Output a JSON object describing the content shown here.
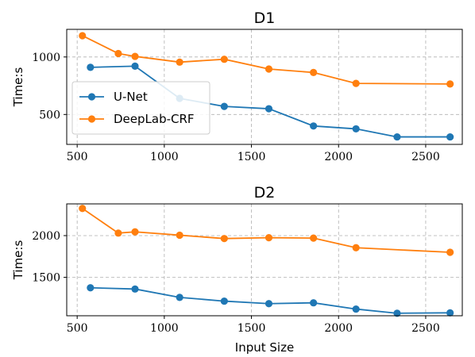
{
  "chart_data": [
    {
      "type": "line",
      "title": "D1",
      "xlabel": "",
      "ylabel": "Time:s",
      "xlim": [
        440,
        2710
      ],
      "ylim": [
        240,
        1240
      ],
      "xticks": [
        500,
        1000,
        1500,
        2000,
        2500
      ],
      "yticks": [
        500,
        1000
      ],
      "grid": true,
      "legend": "center-left",
      "series": [
        {
          "name": "U-Net",
          "color": "#1f77b4",
          "x": [
            576,
            832,
            1088,
            1344,
            1600,
            1856,
            2100,
            2336,
            2640
          ],
          "y": [
            910,
            920,
            640,
            570,
            550,
            400,
            375,
            305,
            305
          ]
        },
        {
          "name": "DeepLab-CRF",
          "color": "#ff7f0e",
          "x": [
            530,
            736,
            832,
            1088,
            1344,
            1600,
            1856,
            2100,
            2640
          ],
          "y": [
            1185,
            1030,
            1005,
            955,
            980,
            895,
            865,
            770,
            765
          ]
        }
      ]
    },
    {
      "type": "line",
      "title": "D2",
      "xlabel": "Input Size",
      "ylabel": "Time:s",
      "xlim": [
        440,
        2710
      ],
      "ylim": [
        1040,
        2380
      ],
      "xticks": [
        500,
        1000,
        1500,
        2000,
        2500
      ],
      "yticks": [
        1500,
        2000
      ],
      "grid": true,
      "series": [
        {
          "name": "U-Net",
          "color": "#1f77b4",
          "x": [
            576,
            832,
            1088,
            1344,
            1600,
            1856,
            2100,
            2336,
            2640
          ],
          "y": [
            1375,
            1360,
            1260,
            1215,
            1185,
            1195,
            1120,
            1070,
            1075
          ]
        },
        {
          "name": "DeepLab-CRF",
          "color": "#ff7f0e",
          "x": [
            530,
            736,
            832,
            1088,
            1344,
            1600,
            1856,
            2100,
            2640
          ],
          "y": [
            2325,
            2030,
            2045,
            2005,
            1965,
            1975,
            1970,
            1855,
            1800
          ]
        }
      ]
    }
  ]
}
